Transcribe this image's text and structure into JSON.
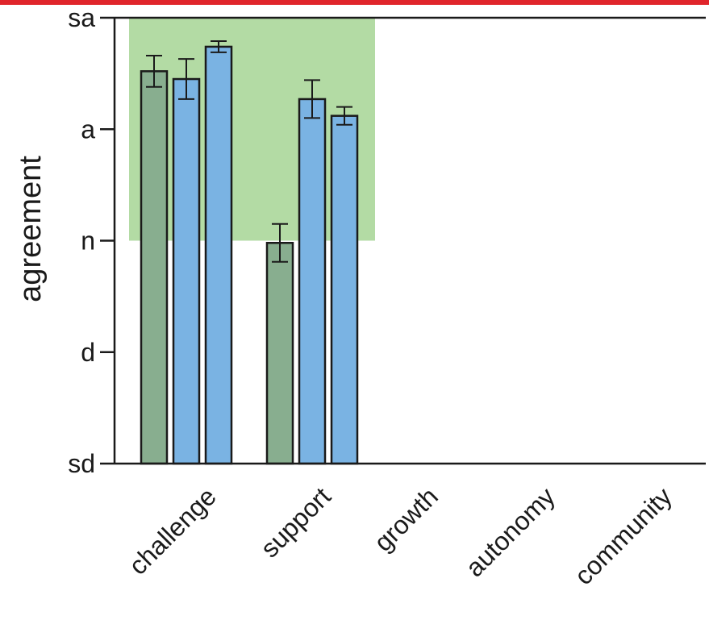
{
  "colors": {
    "top_bar": "#e0252b",
    "highlight_region": "#b3dba4",
    "green_bar": "#88ae8f",
    "blue_bar": "#7ab3e3",
    "axis": "#1a1a1a"
  },
  "chart_data": {
    "type": "bar",
    "ylabel": "agreement",
    "xlabel": "",
    "title": "",
    "y_tick_labels": [
      "sd",
      "d",
      "n",
      "a",
      "sa"
    ],
    "y_tick_values": [
      1,
      2,
      3,
      4,
      5
    ],
    "ylim": [
      1,
      5
    ],
    "categories": [
      "challenge",
      "support",
      "growth",
      "autonomy",
      "community"
    ],
    "highlight_region": {
      "x_categories": [
        "challenge",
        "support"
      ],
      "y_range": [
        3,
        5
      ]
    },
    "grid": false,
    "series": [
      {
        "color_key": "green_bar",
        "values": [
          4.52,
          2.98,
          null,
          null,
          null
        ],
        "errors": [
          0.14,
          0.17,
          null,
          null,
          null
        ]
      },
      {
        "color_key": "blue_bar",
        "values": [
          4.45,
          4.27,
          null,
          null,
          null
        ],
        "errors": [
          0.18,
          0.17,
          null,
          null,
          null
        ]
      },
      {
        "color_key": "blue_bar",
        "values": [
          4.74,
          4.12,
          null,
          null,
          null
        ],
        "errors": [
          0.05,
          0.08,
          null,
          null,
          null
        ]
      }
    ]
  }
}
